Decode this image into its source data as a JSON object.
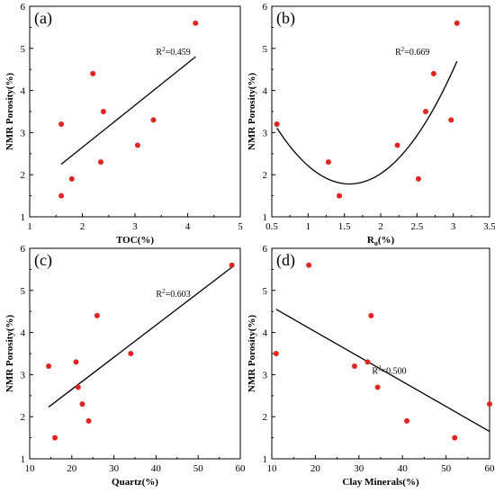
{
  "chart_data": [
    {
      "id": "a",
      "type": "scatter",
      "panel_label": "(a)",
      "xlabel": "TOC(%)",
      "ylabel": "NMR Porosity(%)",
      "xlim": [
        1,
        5
      ],
      "ylim": [
        1,
        6
      ],
      "xticks": [
        "1",
        "2",
        "3",
        "4",
        "5"
      ],
      "yticks": [
        "1",
        "2",
        "3",
        "4",
        "5",
        "6"
      ],
      "r2_label": "R",
      "r2_sup": "2",
      "r2_value": "=0.459",
      "r2_pos": [
        3.4,
        4.85
      ],
      "points": [
        [
          1.6,
          1.5
        ],
        [
          1.6,
          3.2
        ],
        [
          1.8,
          1.9
        ],
        [
          2.2,
          4.4
        ],
        [
          2.35,
          2.3
        ],
        [
          2.4,
          3.5
        ],
        [
          3.05,
          2.7
        ],
        [
          3.35,
          3.3
        ],
        [
          4.15,
          5.6
        ]
      ],
      "fit": {
        "kind": "linear",
        "x": [
          1.6,
          4.15
        ],
        "y": [
          2.25,
          4.8
        ]
      }
    },
    {
      "id": "b",
      "type": "scatter",
      "panel_label": "(b)",
      "xlabel": "R",
      "xlabel_sub": "o",
      "xlabel_suffix": "(%)",
      "ylabel": "NMR Porosity(%)",
      "xlim": [
        0.5,
        3.5
      ],
      "ylim": [
        1,
        6
      ],
      "xticks": [
        "0.5",
        "1",
        "1.5",
        "2",
        "2.5",
        "3",
        "3.5"
      ],
      "yticks": [
        "1",
        "2",
        "3",
        "4",
        "5",
        "6"
      ],
      "r2_label": "R",
      "r2_sup": "2",
      "r2_value": "=0.669",
      "r2_pos": [
        2.2,
        4.85
      ],
      "points": [
        [
          0.57,
          3.2
        ],
        [
          1.28,
          2.3
        ],
        [
          1.43,
          1.5
        ],
        [
          2.23,
          2.7
        ],
        [
          2.52,
          1.9
        ],
        [
          2.62,
          3.5
        ],
        [
          2.73,
          4.4
        ],
        [
          2.97,
          3.3
        ],
        [
          3.05,
          5.6
        ]
      ],
      "fit": {
        "kind": "quadratic",
        "x0": 1.57,
        "y0": 1.78,
        "a": 1.33,
        "xrange": [
          0.57,
          3.05
        ]
      }
    },
    {
      "id": "c",
      "type": "scatter",
      "panel_label": "(c)",
      "xlabel": "Quartz(%)",
      "ylabel": "NMR Porosity(%)",
      "xlim": [
        10,
        60
      ],
      "ylim": [
        1,
        6
      ],
      "xticks": [
        "10",
        "20",
        "30",
        "40",
        "50",
        "60"
      ],
      "yticks": [
        "1",
        "2",
        "3",
        "4",
        "5",
        "6"
      ],
      "r2_label": "R",
      "r2_sup": "2",
      "r2_value": "=0.603",
      "r2_pos": [
        40,
        4.85
      ],
      "points": [
        [
          14.5,
          3.2
        ],
        [
          16,
          1.5
        ],
        [
          21,
          3.3
        ],
        [
          21.5,
          2.7
        ],
        [
          22.5,
          2.3
        ],
        [
          24,
          1.9
        ],
        [
          26,
          4.4
        ],
        [
          34,
          3.5
        ],
        [
          58,
          5.6
        ]
      ],
      "fit": {
        "kind": "linear",
        "x": [
          14.5,
          58
        ],
        "y": [
          2.23,
          5.55
        ]
      }
    },
    {
      "id": "d",
      "type": "scatter",
      "panel_label": "(d)",
      "xlabel": "Clay Minerals(%)",
      "ylabel": "NMR Porosity(%)",
      "xlim": [
        10,
        60
      ],
      "ylim": [
        1,
        6
      ],
      "xticks": [
        "10",
        "20",
        "30",
        "40",
        "50",
        "60"
      ],
      "yticks": [
        "1",
        "2",
        "3",
        "4",
        "5",
        "6"
      ],
      "r2_label": "R",
      "r2_sup": "2",
      "r2_value": "=0.500",
      "r2_pos": [
        33,
        3.02
      ],
      "points": [
        [
          11,
          3.5
        ],
        [
          18.5,
          5.6
        ],
        [
          29,
          3.2
        ],
        [
          32,
          3.3
        ],
        [
          32.8,
          4.4
        ],
        [
          34.3,
          2.7
        ],
        [
          41,
          1.9
        ],
        [
          52,
          1.5
        ],
        [
          60,
          2.3
        ]
      ],
      "fit": {
        "kind": "linear",
        "x": [
          11,
          60
        ],
        "y": [
          4.55,
          1.65
        ]
      }
    }
  ]
}
